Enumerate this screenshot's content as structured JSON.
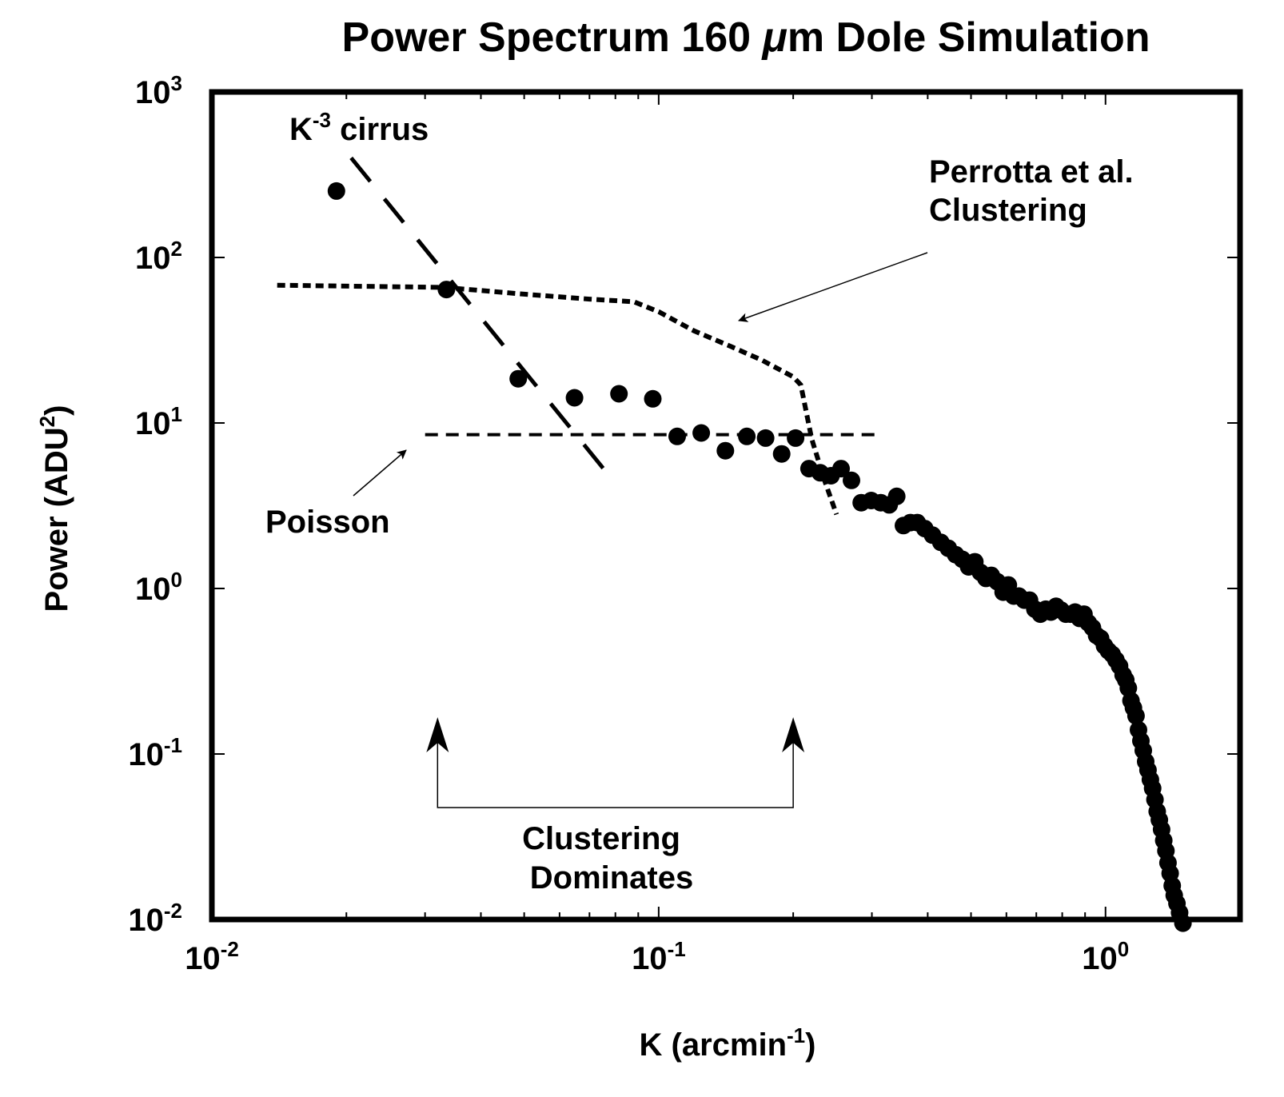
{
  "chart_data": {
    "type": "scatter",
    "title_parts": {
      "pre": "Power Spectrum 160 ",
      "mu": "μ",
      "post": "m Dole Simulation"
    },
    "xlabel": {
      "base": "K (arcmin",
      "exp": "-1",
      "close": ")"
    },
    "ylabel": {
      "base": "Power (ADU",
      "exp": "2",
      "close": ")"
    },
    "xscale": "log",
    "yscale": "log",
    "xlim": [
      0.01,
      2.0
    ],
    "ylim": [
      0.01,
      1000
    ],
    "grid": false,
    "x_ticks": [
      {
        "value": 0.01,
        "base": "10",
        "exp": "-2"
      },
      {
        "value": 0.1,
        "base": "10",
        "exp": "-1"
      },
      {
        "value": 1,
        "base": "10",
        "exp": "0"
      }
    ],
    "y_ticks": [
      {
        "value": 0.01,
        "base": "10",
        "exp": "-2"
      },
      {
        "value": 0.1,
        "base": "10",
        "exp": "-1"
      },
      {
        "value": 1,
        "base": "10",
        "exp": "0"
      },
      {
        "value": 10,
        "base": "10",
        "exp": "1"
      },
      {
        "value": 100,
        "base": "10",
        "exp": "2"
      },
      {
        "value": 1000,
        "base": "10",
        "exp": "3"
      }
    ],
    "series": [
      {
        "name": "Dole simulation power spectrum",
        "style": "dots",
        "x": [
          0.019,
          0.0335,
          0.0485,
          0.0648,
          0.0815,
          0.097,
          0.11,
          0.1245,
          0.141,
          0.1575,
          0.1735,
          0.1885,
          0.2025,
          0.217,
          0.23,
          0.243,
          0.256,
          0.27,
          0.284,
          0.299,
          0.314,
          0.328,
          0.341,
          0.353,
          0.366,
          0.379,
          0.394,
          0.41,
          0.428,
          0.445,
          0.462,
          0.478,
          0.494,
          0.51,
          0.525,
          0.54,
          0.555,
          0.572,
          0.59,
          0.606,
          0.623,
          0.64,
          0.658,
          0.676,
          0.695,
          0.715,
          0.735,
          0.755,
          0.775,
          0.795,
          0.815,
          0.835,
          0.855,
          0.875,
          0.895,
          0.915,
          0.935,
          0.955,
          0.975,
          0.995,
          1.015,
          1.035,
          1.055,
          1.075,
          1.095,
          1.11,
          1.125,
          1.14,
          1.155,
          1.17,
          1.185,
          1.2,
          1.215,
          1.23,
          1.245,
          1.26,
          1.275,
          1.29,
          1.305,
          1.32,
          1.335,
          1.35,
          1.365,
          1.38,
          1.395,
          1.41,
          1.425,
          1.445,
          1.465,
          1.49
        ],
        "y": [
          252,
          64,
          18.5,
          14.2,
          15.0,
          14.0,
          8.3,
          8.7,
          6.8,
          8.3,
          8.1,
          6.5,
          8.1,
          5.3,
          5.0,
          4.8,
          5.3,
          4.5,
          3.3,
          3.4,
          3.3,
          3.2,
          3.6,
          2.4,
          2.5,
          2.5,
          2.3,
          2.1,
          1.9,
          1.75,
          1.6,
          1.5,
          1.35,
          1.45,
          1.25,
          1.15,
          1.2,
          1.1,
          0.95,
          1.05,
          0.9,
          0.9,
          0.85,
          0.85,
          0.75,
          0.7,
          0.75,
          0.72,
          0.78,
          0.74,
          0.7,
          0.7,
          0.72,
          0.66,
          0.7,
          0.62,
          0.58,
          0.52,
          0.5,
          0.45,
          0.42,
          0.4,
          0.37,
          0.34,
          0.3,
          0.28,
          0.25,
          0.21,
          0.19,
          0.17,
          0.14,
          0.12,
          0.105,
          0.09,
          0.08,
          0.07,
          0.062,
          0.053,
          0.045,
          0.04,
          0.035,
          0.03,
          0.026,
          0.022,
          0.019,
          0.016,
          0.014,
          0.0125,
          0.011,
          0.0095
        ]
      },
      {
        "name": "K^-3 cirrus",
        "style": "long-dash",
        "x": [
          0.0205,
          0.079
        ],
        "y": [
          400,
          4.5
        ]
      },
      {
        "name": "Perrotta et al. Clustering",
        "style": "short-dash",
        "x": [
          0.014,
          0.033,
          0.05,
          0.07,
          0.088,
          0.1,
          0.12,
          0.145,
          0.17,
          0.2,
          0.208,
          0.22,
          0.235,
          0.25
        ],
        "y": [
          68,
          66,
          60,
          56,
          54,
          47,
          36,
          29,
          24,
          19,
          17,
          8.0,
          4.5,
          2.8
        ]
      },
      {
        "name": "Poisson",
        "style": "medium-dash",
        "x": [
          0.03,
          0.31
        ],
        "y": [
          8.5,
          8.5
        ]
      }
    ],
    "annotations": {
      "cirrus": {
        "base": "K",
        "exp": "-3",
        "text": " cirrus"
      },
      "perrotta": [
        "Perrotta et al.",
        "Clustering"
      ],
      "poisson": "Poisson",
      "clustering_dominates": [
        "Clustering",
        "Dominates"
      ],
      "clustering_range": [
        0.032,
        0.2
      ]
    }
  }
}
